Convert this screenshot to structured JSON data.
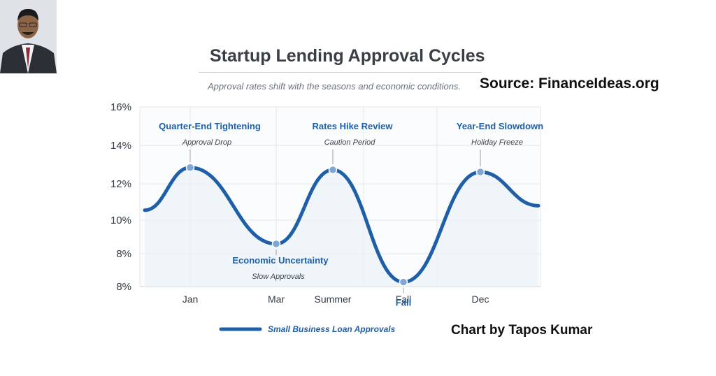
{
  "header": {
    "title": "Startup Lending Approval Cycles",
    "subtitle": "Approval rates shift with the seasons and economic conditions.",
    "source": "Source: FinanceIdeas.org",
    "credit": "Chart by Tapos Kumar"
  },
  "colors": {
    "line": "#1f5fa8",
    "marker": "#7fa6d6",
    "grid": "#e3e6ea",
    "fill": "#eef2f8"
  },
  "chart_data": {
    "type": "line",
    "x": [
      "Jan",
      "Mar",
      "Summer",
      "Fall",
      "Dec"
    ],
    "y_tick_labels": [
      "16%",
      "14%",
      "12%",
      "10%",
      "8%",
      "8%"
    ],
    "ylim": [
      8,
      16
    ],
    "grid": true,
    "legend_position": "bottom-left",
    "series": [
      {
        "name": "Small Business Loan Approvals",
        "points": [
          {
            "x": "Jan",
            "y": 13.3
          },
          {
            "x": "Mar",
            "y": 9.9
          },
          {
            "x": "Summer",
            "y": 13.2
          },
          {
            "x": "Fall",
            "y": 8.2
          },
          {
            "x": "Dec",
            "y": 13.1
          }
        ],
        "start_y": 11.4,
        "end_y": 11.6
      }
    ],
    "annotations": [
      {
        "title": "Quarter-End Tightening",
        "sub": "Approval Drop",
        "point": 0
      },
      {
        "title": "Economic Uncertainty",
        "sub": "Slow Approvals",
        "point": 1
      },
      {
        "title": "Rates Hike Review",
        "sub": "Caution Period",
        "point": 2
      },
      {
        "title": "Fall",
        "sub": "",
        "point": 3
      },
      {
        "title": "Year-End Slowdown",
        "sub": "Holiday Freeze",
        "point": 4
      }
    ]
  }
}
